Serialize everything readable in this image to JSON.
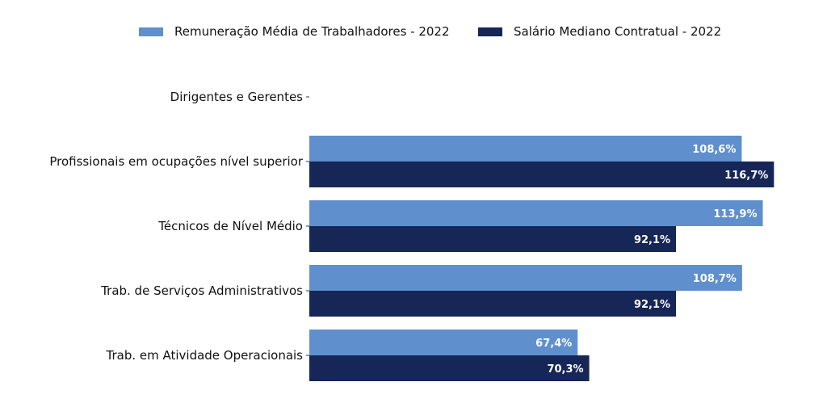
{
  "chart_data": {
    "type": "bar",
    "orientation": "horizontal",
    "categories": [
      "Dirigentes e Gerentes",
      "Profissionais em ocupações nível superior",
      "Técnicos de Nível Médio",
      "Trab. de Serviços Administrativos",
      "Trab. em Atividade Operacionais"
    ],
    "series": [
      {
        "name": "Remuneração Média de Trabalhadores - 2022",
        "color": "#5f8fcd",
        "values": [
          null,
          108.6,
          113.9,
          108.7,
          67.4
        ],
        "labels": [
          "",
          "108,6%",
          "113,9%",
          "108,7%",
          "67,4%"
        ]
      },
      {
        "name": "Salário Mediano Contratual - 2022",
        "color": "#152657",
        "values": [
          null,
          116.7,
          92.1,
          92.1,
          70.3
        ],
        "labels": [
          "",
          "116,7%",
          "92,1%",
          "92,1%",
          "70,3%"
        ]
      }
    ],
    "xlim": [
      0,
      122
    ],
    "legend_position": "top",
    "grid": false,
    "title": "",
    "xlabel": "",
    "ylabel": ""
  }
}
